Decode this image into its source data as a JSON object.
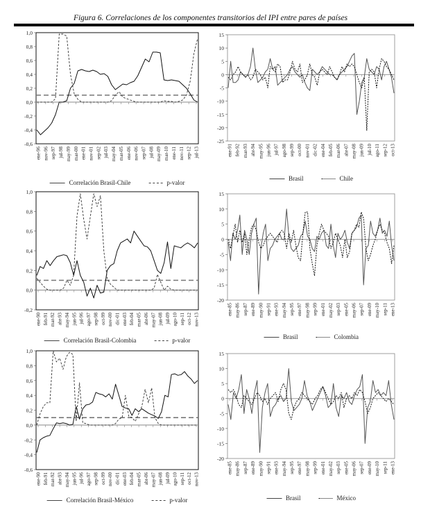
{
  "title": "Figura 6. Correlaciones de los componentes transitorios del IPI entre pares de países",
  "chart_data": [
    {
      "type": "line",
      "title": "",
      "ylim": [
        -0.6,
        1.0
      ],
      "yticks": [
        "-0,6",
        "-0,4",
        "-0,2",
        "0,0",
        "0,2",
        "0,4",
        "0,6",
        "0,8",
        "1,0"
      ],
      "x_ticks": [
        "ene-96",
        "nov-96",
        "sep-97",
        "jul-98",
        "may-99",
        "mar-00",
        "ene-01",
        "nov-01",
        "sep-02",
        "jul-03",
        "may-04",
        "mar-05",
        "ene-06",
        "nov-06",
        "sep-07",
        "jul-08",
        "may-09",
        "mar-10",
        "ene-11",
        "nov-11",
        "sep-12",
        "jul-13"
      ],
      "threshold": 0.1,
      "series": [
        {
          "name": "Correlación Brasil-Chile",
          "style": "solid",
          "values": [
            -0.4,
            -0.47,
            -0.42,
            -0.37,
            -0.3,
            -0.18,
            0.0,
            0.0,
            0.02,
            0.2,
            0.27,
            0.45,
            0.47,
            0.45,
            0.44,
            0.46,
            0.44,
            0.4,
            0.41,
            0.37,
            0.25,
            0.18,
            0.22,
            0.26,
            0.25,
            0.28,
            0.3,
            0.38,
            0.5,
            0.62,
            0.58,
            0.72,
            0.72,
            0.71,
            0.32,
            0.31,
            0.32,
            0.31,
            0.3,
            0.25,
            0.2,
            0.12,
            0.03,
            0.0
          ]
        },
        {
          "name": "p-valor",
          "style": "dash",
          "values": [
            0,
            0,
            0,
            0,
            0,
            0.05,
            0.98,
            0.98,
            0.95,
            0.4,
            0.12,
            0.04,
            0,
            0,
            0,
            0,
            0,
            0,
            0,
            0,
            0.02,
            0.1,
            0.15,
            0.07,
            0.05,
            0.03,
            0.01,
            0,
            0,
            0,
            0,
            0,
            0,
            0,
            0.02,
            0.01,
            0.01,
            0,
            0.01,
            0.03,
            0.1,
            0.3,
            0.7,
            0.92
          ]
        }
      ]
    },
    {
      "type": "line",
      "title": "",
      "ylim": [
        -25,
        15
      ],
      "yticks": [
        "-25",
        "-20",
        "-15",
        "-10",
        "-5",
        "0",
        "5",
        "10",
        "15"
      ],
      "x_ticks": [
        "ene-91",
        "feb-92",
        "mar-93",
        "abr-94",
        "may-95",
        "jun-96",
        "jul-97",
        "ago-98",
        "sep-99",
        "oct-00",
        "nov-01",
        "dic-02",
        "ene-04",
        "feb-05",
        "mar-06",
        "abr-07",
        "may-08",
        "jun-09",
        "jul-10",
        "ago-11",
        "sep-12",
        "oct-13"
      ],
      "series": [
        {
          "name": "Brasil",
          "style": "solid",
          "values": [
            -5,
            5,
            -3,
            -3,
            -2,
            1,
            0,
            -1,
            0,
            3,
            10,
            2,
            -3,
            -2,
            -1,
            1,
            2,
            6,
            2,
            3,
            -4,
            -3,
            -2,
            -1,
            0,
            2,
            3,
            1,
            0,
            -1,
            0,
            -3,
            -5,
            -6,
            2,
            1,
            0,
            1,
            3,
            2,
            1,
            0,
            0,
            -1,
            -2,
            0,
            1,
            2,
            3,
            5,
            7,
            8,
            -15,
            -10,
            -3,
            -1,
            6,
            2,
            1,
            0,
            3,
            2,
            -2,
            3,
            5,
            2,
            -1,
            -7
          ]
        },
        {
          "name": "Chile",
          "style": "dot",
          "values": [
            -1,
            -2,
            0,
            1,
            3,
            1,
            0,
            -1,
            0,
            -2,
            -1,
            2,
            1,
            0,
            -2,
            -1,
            -5,
            3,
            2,
            1,
            4,
            3,
            -3,
            -2,
            -2,
            1,
            5,
            2,
            1,
            4,
            -3,
            -2,
            0,
            4,
            0,
            -1,
            -4,
            1,
            2,
            1,
            0,
            3,
            1,
            -1,
            -2,
            0,
            3,
            1,
            4,
            3,
            4,
            3,
            0,
            -3,
            -5,
            -1,
            -21,
            1,
            2,
            1,
            -5,
            2,
            6,
            5,
            3,
            2,
            0,
            -2
          ]
        }
      ]
    },
    {
      "type": "line",
      "title": "",
      "ylim": [
        -0.2,
        1.0
      ],
      "yticks": [
        "-0,2",
        "0,0",
        "0,2",
        "0,4",
        "0,6",
        "0,8",
        "1,0"
      ],
      "x_ticks": [
        "ene-90",
        "feb-91",
        "mar-92",
        "abr-93",
        "may-94",
        "jun-95",
        "jul-96",
        "ago-97",
        "sep-98",
        "oct-99",
        "nov-00",
        "dic-01",
        "ene-03",
        "feb-04",
        "mar-05",
        "abr-06",
        "may-07",
        "jun-08",
        "jul-09",
        "ago-10",
        "sep-11",
        "oct-12",
        "nov-13"
      ],
      "threshold": 0.1,
      "series": [
        {
          "name": "Correlación Brasil-Colombia",
          "style": "solid",
          "values": [
            0.15,
            0.24,
            0.22,
            0.3,
            0.25,
            0.3,
            0.34,
            0.35,
            0.36,
            0.35,
            0.28,
            0.15,
            0.3,
            0.15,
            0.08,
            -0.06,
            0.02,
            -0.08,
            0.05,
            -0.03,
            -0.02,
            0.2,
            0.25,
            0.27,
            0.4,
            0.48,
            0.5,
            0.52,
            0.48,
            0.6,
            0.55,
            0.5,
            0.45,
            0.44,
            0.4,
            0.3,
            0.2,
            0.17,
            0.28,
            0.49,
            0.22,
            0.45,
            0.44,
            0.43,
            0.46,
            0.48,
            0.46,
            0.43,
            0.48
          ]
        },
        {
          "name": "p-valor",
          "style": "dash",
          "values": [
            0.12,
            0.08,
            0.04,
            0.01,
            0,
            0,
            0,
            0,
            0.02,
            0.1,
            0.05,
            0.15,
            0.75,
            0.98,
            0.72,
            0.52,
            0.75,
            0.98,
            0.85,
            0.96,
            0.4,
            0.12,
            0.06,
            0.03,
            0,
            0,
            0,
            0,
            0,
            0,
            0,
            0,
            0,
            0,
            0,
            0.02,
            0.16,
            0.08,
            0,
            0.04,
            0.01,
            0,
            0,
            0,
            0,
            0,
            0,
            0,
            0
          ]
        }
      ]
    },
    {
      "type": "line",
      "title": "",
      "ylim": [
        -20,
        15
      ],
      "yticks": [
        "-20",
        "-15",
        "-10",
        "-5",
        "0",
        "5",
        "10",
        "15"
      ],
      "x_ticks": [
        "ene-85",
        "may-86",
        "sep-87",
        "ene-89",
        "may-90",
        "sep-91",
        "ene-93",
        "may-94",
        "sep-95",
        "ene-97",
        "may-98",
        "sep-99",
        "ene-01",
        "may-02",
        "sep-03",
        "ene-05",
        "may-06",
        "sep-07",
        "ene-09",
        "may-10",
        "sep-11",
        "ene-13"
      ],
      "series": [
        {
          "name": "Brasil",
          "style": "solid",
          "values": [
            -1,
            -7,
            2,
            0,
            3,
            8,
            -5,
            3,
            0,
            -5,
            2,
            5,
            7,
            -18,
            -3,
            2,
            5,
            -7,
            -3,
            -2,
            0,
            1,
            2,
            0,
            0,
            10,
            1,
            -3,
            -4,
            -3,
            -2,
            1,
            2,
            6,
            1,
            0,
            -3,
            -4,
            1,
            0,
            2,
            3,
            -2,
            -3,
            5,
            -2,
            -6,
            2,
            0,
            1,
            3,
            -1,
            -3,
            2,
            3,
            4,
            7,
            8,
            -15,
            -3,
            -2,
            6,
            2,
            1,
            3,
            7,
            2,
            3,
            1,
            6,
            -2,
            -7
          ]
        },
        {
          "name": "Colombia",
          "style": "dot",
          "values": [
            0,
            -3,
            1,
            5,
            -1,
            3,
            -1,
            2,
            -5,
            0,
            4,
            5,
            3,
            -1,
            -3,
            -2,
            0,
            1,
            2,
            1,
            0,
            -1,
            2,
            3,
            2,
            -3,
            2,
            -1,
            3,
            -2,
            -6,
            -7,
            2,
            9,
            9,
            -3,
            -8,
            -12,
            -2,
            2,
            5,
            3,
            2,
            1,
            -3,
            -1,
            2,
            0,
            -2,
            -6,
            0,
            -6,
            -4,
            2,
            3,
            5,
            4,
            9,
            7,
            -3,
            -7,
            -5,
            -2,
            0,
            3,
            5,
            3,
            2,
            -1,
            -3,
            -8,
            -2
          ]
        }
      ]
    },
    {
      "type": "line",
      "title": "",
      "ylim": [
        -0.6,
        1.0
      ],
      "yticks": [
        "-0,6",
        "-0,4",
        "-0,2",
        "0,0",
        "0,2",
        "0,4",
        "0,6",
        "0,8",
        "1,0"
      ],
      "x_ticks": [
        "ene-90",
        "feb-91",
        "mar-92",
        "abr-93",
        "may-94",
        "jun-95",
        "jul-96",
        "ago-97",
        "sep-98",
        "oct-99",
        "nov-00",
        "dic-01",
        "ene-03",
        "feb-04",
        "mar-05",
        "abr-06",
        "may-07",
        "jun-08",
        "jul-09",
        "ago-10",
        "sep-11",
        "oct-12",
        "nov-13"
      ],
      "threshold": 0.1,
      "series": [
        {
          "name": "Correlación Brasil-México",
          "style": "solid",
          "values": [
            -0.37,
            -0.2,
            -0.17,
            -0.15,
            -0.14,
            -0.05,
            0.03,
            0.02,
            0.03,
            0.02,
            0.0,
            0.01,
            0.25,
            0.08,
            0.22,
            0.27,
            0.28,
            0.31,
            0.44,
            0.42,
            0.41,
            0.38,
            0.42,
            0.35,
            0.55,
            0.4,
            0.25,
            0.23,
            0.22,
            0.13,
            0.22,
            0.18,
            0.22,
            0.19,
            0.16,
            0.14,
            0.12,
            0.09,
            0.18,
            0.4,
            0.38,
            0.68,
            0.69,
            0.67,
            0.68,
            0.72,
            0.66,
            0.62,
            0.56,
            0.6
          ]
        },
        {
          "name": "p-valor",
          "style": "dash",
          "values": [
            0,
            0.15,
            0.25,
            0.3,
            0.3,
            1.0,
            0.85,
            0.9,
            0.75,
            0.92,
            0.98,
            0.95,
            0.05,
            0.57,
            0.03,
            0.02,
            0,
            0,
            0,
            0,
            0,
            0,
            0,
            0,
            0.02,
            0.08,
            0.1,
            0.4,
            0.12,
            0.1,
            0.05,
            0.15,
            0.25,
            0.48,
            0.3,
            0.5,
            0.1,
            0.02,
            0,
            0,
            0,
            0,
            0,
            0,
            0,
            0,
            0,
            0,
            0,
            0
          ]
        }
      ]
    },
    {
      "type": "line",
      "title": "",
      "ylim": [
        -20,
        15
      ],
      "yticks": [
        "-20",
        "-15",
        "-10",
        "-5",
        "0",
        "5",
        "10",
        "15"
      ],
      "x_ticks": [
        "ene-85",
        "may-86",
        "sep-87",
        "ene-89",
        "may-90",
        "sep-91",
        "ene-93",
        "may-94",
        "sep-95",
        "ene-97",
        "may-98",
        "sep-99",
        "ene-01",
        "may-02",
        "sep-03",
        "ene-05",
        "may-06",
        "sep-07",
        "ene-09",
        "may-10",
        "sep-11",
        "ene-13"
      ],
      "series": [
        {
          "name": "Brasil",
          "style": "solid",
          "values": [
            -2,
            -7,
            2,
            0,
            3,
            8,
            -5,
            3,
            0,
            -5,
            2,
            6,
            -18,
            -3,
            2,
            5,
            -6,
            -3,
            -2,
            0,
            1,
            -1,
            0,
            10,
            -1,
            -4,
            -3,
            -2,
            0,
            6,
            1,
            -1,
            -4,
            -2,
            0,
            2,
            4,
            1,
            -3,
            -2,
            5,
            -3,
            -6,
            1,
            0,
            2,
            -1,
            -2,
            1,
            3,
            4,
            8,
            -15,
            -3,
            -1,
            6,
            2,
            3,
            1,
            2,
            1,
            6,
            -2,
            -7
          ]
        },
        {
          "name": "México",
          "style": "dot",
          "values": [
            3,
            2,
            3,
            1,
            -2,
            -3,
            1,
            0,
            -1,
            -2,
            0,
            2,
            1,
            -1,
            0,
            -2,
            0,
            1,
            2,
            -1,
            3,
            5,
            3,
            -5,
            -7,
            -3,
            -1,
            0,
            2,
            1,
            0,
            -1,
            -2,
            0,
            1,
            3,
            4,
            2,
            0,
            -2,
            -1,
            1,
            0,
            2,
            -3,
            0,
            1,
            0,
            2,
            1,
            3,
            2,
            -1,
            -5,
            -3,
            0,
            1,
            2,
            1,
            0,
            -1,
            0,
            -1,
            -2
          ]
        }
      ]
    }
  ]
}
